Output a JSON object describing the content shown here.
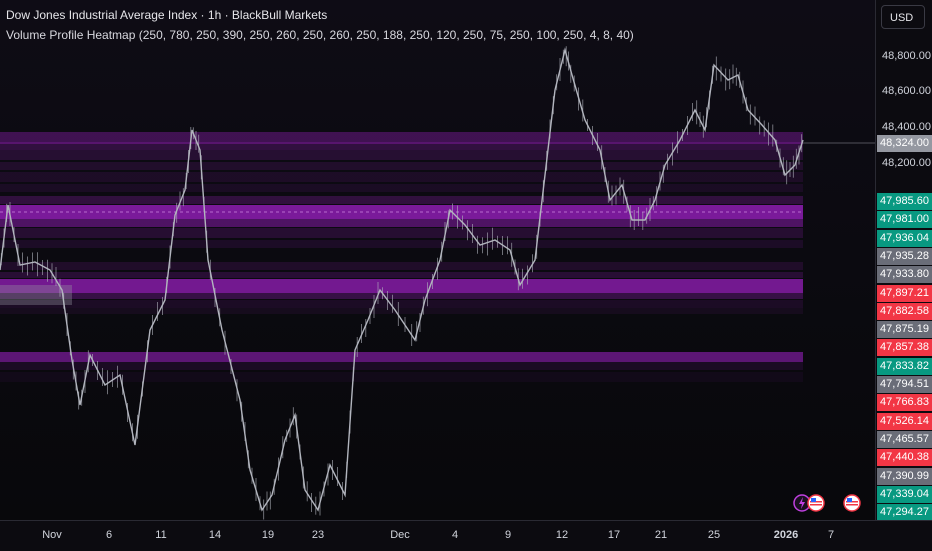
{
  "header": {
    "title": "Dow Jones Industrial Average Index · 1h · BlackBull Markets",
    "indicator": "Volume Profile Heatmap (250, 780, 250, 390, 250, 260, 250, 260, 250, 188, 250, 120, 250, 75, 250, 100, 250, 4, 8, 40)"
  },
  "price_axis": {
    "currency": "USD",
    "ticks": [
      "48,800.00",
      "48,600.00",
      "48,400.00",
      "48,200.00"
    ],
    "current_price": "48,324.00",
    "labels": [
      {
        "value": "47,985.60",
        "color": "#089981"
      },
      {
        "value": "47,981.00",
        "color": "#089981"
      },
      {
        "value": "47,936.04",
        "color": "#089981"
      },
      {
        "value": "47,935.28",
        "color": "#6a6d78"
      },
      {
        "value": "47,933.80",
        "color": "#6a6d78"
      },
      {
        "value": "47,897.21",
        "color": "#f23645"
      },
      {
        "value": "47,882.58",
        "color": "#f23645"
      },
      {
        "value": "47,875.19",
        "color": "#6a6d78"
      },
      {
        "value": "47,857.38",
        "color": "#f23645"
      },
      {
        "value": "47,833.82",
        "color": "#089981"
      },
      {
        "value": "47,794.51",
        "color": "#6a6d78"
      },
      {
        "value": "47,766.83",
        "color": "#f23645"
      },
      {
        "value": "47,526.14",
        "color": "#f23645"
      },
      {
        "value": "47,465.57",
        "color": "#6a6d78"
      },
      {
        "value": "47,440.38",
        "color": "#f23645"
      },
      {
        "value": "47,390.99",
        "color": "#6a6d78"
      },
      {
        "value": "47,339.04",
        "color": "#089981"
      },
      {
        "value": "47,294.27",
        "color": "#089981"
      }
    ]
  },
  "time_axis": {
    "labels": [
      "Nov",
      "6",
      "11",
      "14",
      "19",
      "23",
      "Dec",
      "4",
      "9",
      "12",
      "17",
      "21",
      "25",
      "2026",
      "7"
    ]
  },
  "colors": {
    "heatmap": "#a020c8",
    "candle": "#b2b5be",
    "background": "#0d0c12"
  },
  "events": {
    "icons": [
      "lightning-icon",
      "us-flag-icon",
      "us-flag-icon"
    ]
  }
}
